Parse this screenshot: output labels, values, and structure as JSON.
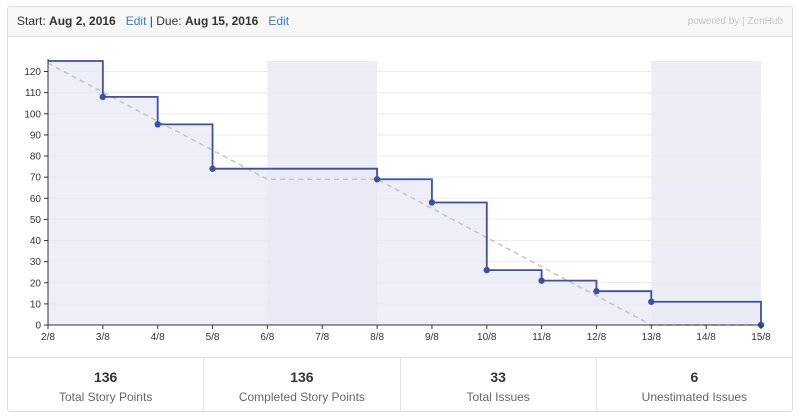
{
  "header": {
    "start_label": "Start:",
    "start_date": "Aug 2, 2016",
    "start_edit": "Edit",
    "separator": "|",
    "due_label": "Due:",
    "due_date": "Aug 15, 2016",
    "due_edit": "Edit",
    "powered_by": "powered by | ZenHub"
  },
  "chart_data": {
    "type": "line",
    "title": "",
    "xlabel": "",
    "ylabel": "",
    "categories": [
      "2/8",
      "3/8",
      "4/8",
      "5/8",
      "6/8",
      "7/8",
      "8/8",
      "9/8",
      "10/8",
      "11/8",
      "12/8",
      "13/8",
      "14/8",
      "15/8"
    ],
    "yticks": [
      0,
      10,
      20,
      30,
      40,
      50,
      60,
      70,
      80,
      90,
      100,
      110,
      120
    ],
    "ylim": [
      0,
      125
    ],
    "grid": true,
    "weekend_ranges": [
      [
        "6/8",
        "8/8"
      ],
      [
        "13/8",
        "15/8"
      ]
    ],
    "series": [
      {
        "kind": "remaining-step",
        "color": "#3d4fa0",
        "fill": "#e8e8f5",
        "points": [
          {
            "x": "2/8",
            "y": 125,
            "marker": false
          },
          {
            "x": "3/8",
            "y": 108,
            "marker": true
          },
          {
            "x": "4/8",
            "y": 95,
            "marker": true
          },
          {
            "x": "5/8",
            "y": 74,
            "marker": true
          },
          {
            "x": "8/8",
            "y": 69,
            "marker": true
          },
          {
            "x": "9/8",
            "y": 58,
            "marker": true
          },
          {
            "x": "10/8",
            "y": 26,
            "marker": true
          },
          {
            "x": "11/8",
            "y": 21,
            "marker": true
          },
          {
            "x": "12/8",
            "y": 16,
            "marker": true
          },
          {
            "x": "13/8",
            "y": 11,
            "marker": true
          },
          {
            "x": "15/8",
            "y": 0,
            "marker": true
          }
        ]
      },
      {
        "kind": "ideal",
        "color": "#c4c4c4",
        "dashed": true,
        "points": [
          {
            "x": "2/8",
            "y": 124
          },
          {
            "x": "6/8",
            "y": 69
          },
          {
            "x": "8/8",
            "y": 69
          },
          {
            "x": "13/8",
            "y": 0
          },
          {
            "x": "15/8",
            "y": 0
          }
        ]
      }
    ]
  },
  "stats": [
    {
      "value": "136",
      "label": "Total Story Points"
    },
    {
      "value": "136",
      "label": "Completed Story Points"
    },
    {
      "value": "33",
      "label": "Total Issues"
    },
    {
      "value": "6",
      "label": "Unestimated Issues"
    }
  ]
}
